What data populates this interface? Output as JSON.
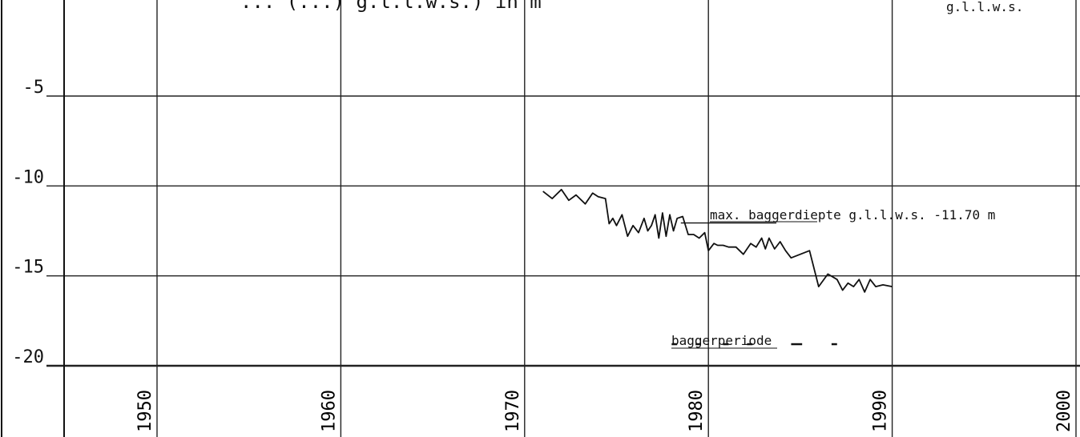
{
  "chart_data": {
    "type": "line",
    "title": "... (...) g.l.l.w.s.) in m",
    "unit_label": "g.l.l.w.s.",
    "xlim": [
      1945,
      2000
    ],
    "ylim": [
      -20,
      0
    ],
    "grid": true,
    "x_ticks": [
      1950,
      1960,
      1970,
      1980,
      1990,
      2000
    ],
    "x_tick_labels": [
      "1950",
      "1960",
      "1970",
      "1980",
      "1990",
      "2000"
    ],
    "y_ticks": [
      -5,
      -10,
      -15,
      -20
    ],
    "y_tick_labels": [
      "-5",
      "-10",
      "-15",
      "-20"
    ],
    "series": [
      {
        "x": [
          1971.0,
          1971.5,
          1972.0,
          1972.4,
          1972.8,
          1973.3,
          1973.7,
          1974.0,
          1974.4,
          1974.6,
          1974.8,
          1975.0,
          1975.3,
          1975.6,
          1975.9,
          1976.2,
          1976.5,
          1976.7,
          1976.9,
          1977.1,
          1977.3,
          1977.5,
          1977.7,
          1977.9,
          1978.1,
          1978.3,
          1978.6,
          1978.9,
          1979.2,
          1979.5,
          1979.8,
          1980.0,
          1980.3,
          1980.5,
          1980.8,
          1981.1,
          1981.5,
          1981.9,
          1982.3,
          1982.6,
          1982.9,
          1983.1,
          1983.3,
          1983.6,
          1983.9,
          1984.2,
          1984.5,
          1985.0,
          1985.5,
          1986.0,
          1986.5,
          1987.0,
          1987.3,
          1987.6,
          1987.9,
          1988.2,
          1988.5,
          1988.8,
          1989.1,
          1989.5,
          1990.0
        ],
        "values": [
          -10.3,
          -10.7,
          -10.2,
          -10.8,
          -10.5,
          -11.0,
          -10.4,
          -10.6,
          -10.7,
          -12.1,
          -11.8,
          -12.2,
          -11.6,
          -12.8,
          -12.2,
          -12.6,
          -11.8,
          -12.5,
          -12.2,
          -11.6,
          -12.9,
          -11.5,
          -12.8,
          -11.6,
          -12.5,
          -11.8,
          -11.7,
          -12.7,
          -12.7,
          -12.9,
          -12.6,
          -13.6,
          -13.2,
          -13.3,
          -13.3,
          -13.4,
          -13.4,
          -13.8,
          -13.2,
          -13.4,
          -12.9,
          -13.5,
          -12.9,
          -13.5,
          -13.1,
          -13.6,
          -14.0,
          -13.8,
          -13.6,
          -15.6,
          -14.9,
          -15.2,
          -15.8,
          -15.4,
          -15.6,
          -15.2,
          -15.9,
          -15.2,
          -15.6,
          -15.5,
          -15.6
        ]
      }
    ],
    "reference_line": {
      "value": -11.7,
      "label": "max. baggerdiepte g.l.l.w.s. -11.70 m"
    },
    "dredging_periods": {
      "label": "baggerperiode",
      "y": -18.8,
      "segments": [
        [
          1978.0,
          1978.3
        ],
        [
          1979.3,
          1979.6
        ],
        [
          1980.8,
          1981.1
        ],
        [
          1982.1,
          1982.4
        ],
        [
          1984.5,
          1985.1
        ],
        [
          1986.7,
          1987.0
        ]
      ]
    },
    "colors": {
      "ink": "#111111",
      "grid": "#222222",
      "background": "#ffffff"
    }
  }
}
